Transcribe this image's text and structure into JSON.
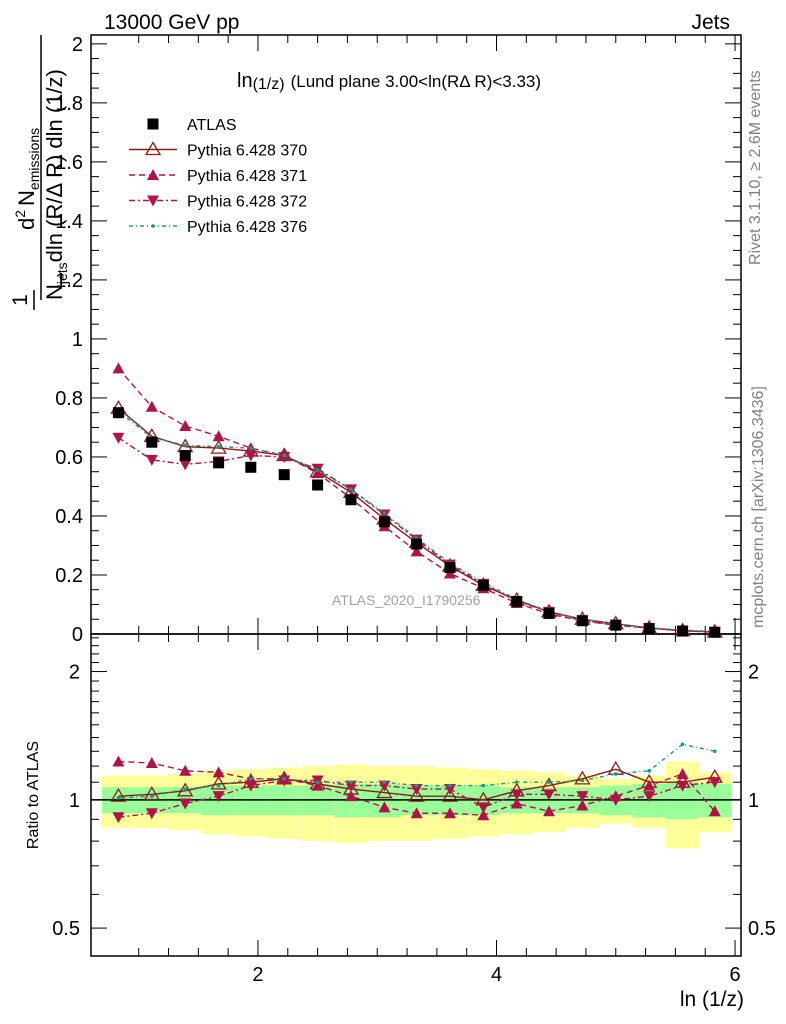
{
  "header": {
    "left": "13000 GeV pp",
    "right": "Jets"
  },
  "plot_title": {
    "main": "ln",
    "sub": "(1/z)",
    "rest": "(Lund plane 3.00<ln(RΔ R)<3.33)"
  },
  "y_label": {
    "numerator_one": "1",
    "numerator_sup": "2",
    "numerator_main": "d",
    "numerator_N": "N",
    "numerator_sub": "emissions",
    "denominator_N": "N",
    "denominator_sub": "jets",
    "denominator_rest": "dln (R/Δ R) dln (1/z)"
  },
  "ratio_ylabel": "Ratio to ATLAS",
  "x_label": "ln (1/z)",
  "watermark": "ATLAS_2020_I1790256",
  "side_text_top": "Rivet 3.1.10, ≥ 2.6M events",
  "side_text_bottom": "mcplots.cern.ch [arXiv:1306.3436]",
  "colors": {
    "atlas": "#000000",
    "p370": "#8b1a1a",
    "p371": "#b0124a",
    "p372": "#b0124a",
    "p376": "#1a9a7a",
    "band_inner": "#99ff99",
    "band_outer": "#ffff99"
  },
  "chart_data": {
    "type": "scatter",
    "x": [
      0.83,
      1.11,
      1.39,
      1.67,
      1.94,
      2.22,
      2.5,
      2.78,
      3.06,
      3.33,
      3.61,
      3.89,
      4.17,
      4.44,
      4.72,
      5.0,
      5.28,
      5.56,
      5.83
    ],
    "xlim": [
      0.6,
      6.05
    ],
    "xticks": [
      "2",
      "4",
      "6"
    ],
    "main_ylim": [
      0,
      2.03
    ],
    "main_yticks": [
      "0",
      "0.2",
      "0.4",
      "0.6",
      "0.8",
      "1",
      "1.2",
      "1.4",
      "1.6",
      "1.8",
      "2"
    ],
    "ratio_ylim_log": [
      0.43,
      2.45
    ],
    "ratio_yticks": [
      "0.5",
      "1",
      "2"
    ],
    "legend": [
      "ATLAS",
      "Pythia 6.428 370",
      "Pythia 6.428 371",
      "Pythia 6.428 372",
      "Pythia 6.428 376"
    ],
    "legend_placement": "top-left",
    "series": [
      {
        "name": "ATLAS",
        "values": [
          0.75,
          0.65,
          0.605,
          0.58,
          0.565,
          0.54,
          0.505,
          0.455,
          0.38,
          0.305,
          0.225,
          0.165,
          0.11,
          0.07,
          0.045,
          0.03,
          0.018,
          0.01,
          0.006
        ]
      },
      {
        "name": "Pythia 6.428 370",
        "values": [
          0.765,
          0.67,
          0.635,
          0.63,
          0.62,
          0.605,
          0.55,
          0.48,
          0.39,
          0.31,
          0.23,
          0.165,
          0.115,
          0.075,
          0.05,
          0.035,
          0.02,
          0.011,
          0.007
        ]
      },
      {
        "name": "Pythia 6.428 371",
        "values": [
          0.9,
          0.77,
          0.705,
          0.67,
          0.63,
          0.605,
          0.545,
          0.46,
          0.365,
          0.28,
          0.205,
          0.155,
          0.105,
          0.068,
          0.044,
          0.03,
          0.02,
          0.0115,
          0.0057
        ]
      },
      {
        "name": "Pythia 6.428 372",
        "values": [
          0.665,
          0.59,
          0.575,
          0.585,
          0.605,
          0.6,
          0.56,
          0.49,
          0.405,
          0.32,
          0.235,
          0.17,
          0.112,
          0.075,
          0.046,
          0.03,
          0.02,
          0.011,
          0.0067
        ]
      },
      {
        "name": "Pythia 6.428 376",
        "values": [
          0.755,
          0.665,
          0.64,
          0.635,
          0.63,
          0.605,
          0.555,
          0.49,
          0.41,
          0.325,
          0.24,
          0.175,
          0.117,
          0.077,
          0.05,
          0.035,
          0.021,
          0.0137,
          0.008
        ]
      }
    ],
    "ratios": [
      {
        "name": "Pythia 6.428 370",
        "values": [
          1.02,
          1.03,
          1.05,
          1.09,
          1.1,
          1.12,
          1.09,
          1.06,
          1.04,
          1.02,
          1.02,
          1.0,
          1.05,
          1.08,
          1.12,
          1.18,
          1.1,
          1.1,
          1.13
        ]
      },
      {
        "name": "Pythia 6.428 371",
        "values": [
          1.23,
          1.22,
          1.17,
          1.16,
          1.12,
          1.12,
          1.08,
          1.02,
          0.96,
          0.93,
          0.93,
          0.92,
          0.98,
          0.94,
          0.97,
          1.02,
          1.08,
          1.15,
          0.94
        ]
      },
      {
        "name": "Pythia 6.428 372",
        "values": [
          0.91,
          0.93,
          0.98,
          1.02,
          1.08,
          1.11,
          1.11,
          1.08,
          1.08,
          1.06,
          1.06,
          0.96,
          1.03,
          1.03,
          1.02,
          1.0,
          1.02,
          1.08,
          1.1
        ]
      },
      {
        "name": "Pythia 6.428 376",
        "values": [
          1.01,
          1.02,
          1.06,
          1.08,
          1.12,
          1.12,
          1.1,
          1.1,
          1.1,
          1.08,
          1.08,
          1.08,
          1.1,
          1.1,
          1.11,
          1.15,
          1.17,
          1.35,
          1.3
        ]
      }
    ],
    "band_inner": [
      0.07,
      0.07,
      0.07,
      0.08,
      0.08,
      0.08,
      0.08,
      0.09,
      0.09,
      0.08,
      0.08,
      0.08,
      0.07,
      0.07,
      0.07,
      0.08,
      0.09,
      0.1,
      0.09
    ],
    "band_outer": [
      0.14,
      0.14,
      0.15,
      0.17,
      0.18,
      0.19,
      0.2,
      0.21,
      0.2,
      0.2,
      0.19,
      0.18,
      0.17,
      0.16,
      0.14,
      0.12,
      0.14,
      0.23,
      0.16
    ]
  }
}
